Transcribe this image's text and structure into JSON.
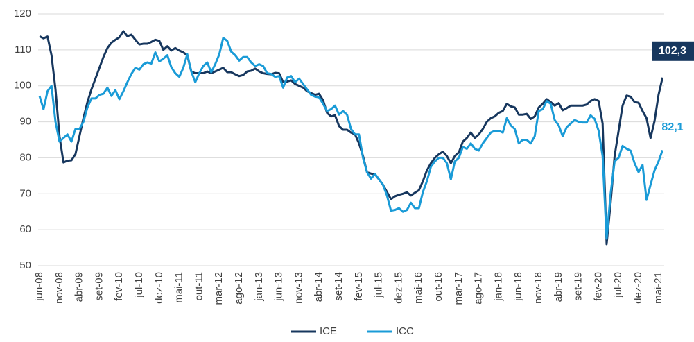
{
  "chart_data": {
    "type": "line",
    "categories": [
      "jun-08",
      null,
      null,
      null,
      null,
      "nov-08",
      null,
      null,
      null,
      null,
      "abr-09",
      null,
      null,
      null,
      null,
      "set-09",
      null,
      null,
      null,
      null,
      "fev-10",
      null,
      null,
      null,
      null,
      "jul-10",
      null,
      null,
      null,
      null,
      "dez-10",
      null,
      null,
      null,
      null,
      "mai-11",
      null,
      null,
      null,
      null,
      "out-11",
      null,
      null,
      null,
      null,
      "mar-12",
      null,
      null,
      null,
      null,
      "ago-12",
      null,
      null,
      null,
      null,
      "jan-13",
      null,
      null,
      null,
      null,
      "jun-13",
      null,
      null,
      null,
      null,
      "nov-13",
      null,
      null,
      null,
      null,
      "abr-14",
      null,
      null,
      null,
      null,
      "set-14",
      null,
      null,
      null,
      null,
      "fev-15",
      null,
      null,
      null,
      null,
      "jul-15",
      null,
      null,
      null,
      null,
      "dez-15",
      null,
      null,
      null,
      null,
      "mai-16",
      null,
      null,
      null,
      null,
      "out-16",
      null,
      null,
      null,
      null,
      "mar-17",
      null,
      null,
      null,
      null,
      "ago-17",
      null,
      null,
      null,
      null,
      "jan-18",
      null,
      null,
      null,
      null,
      "jun-18",
      null,
      null,
      null,
      null,
      "nov-18",
      null,
      null,
      null,
      null,
      "abr-19",
      null,
      null,
      null,
      null,
      "set-19",
      null,
      null,
      null,
      null,
      "fev-20",
      null,
      null,
      null,
      null,
      "jul-20",
      null,
      null,
      null,
      null,
      "dez-20",
      null,
      null,
      null,
      null,
      "mai-21",
      null
    ],
    "series": [
      {
        "name": "ICE",
        "color": "#17375e",
        "end_label": "102,3",
        "values": [
          113.8,
          113.2,
          113.7,
          108.5,
          99,
          86,
          78.7,
          79.2,
          79.3,
          81,
          86,
          91,
          95.5,
          99,
          102,
          105,
          108,
          110.5,
          112,
          112.8,
          113.5,
          115.2,
          113.8,
          114.2,
          112.8,
          111.5,
          111.7,
          111.7,
          112.2,
          112.8,
          112.5,
          110,
          111,
          109.8,
          110.5,
          109.8,
          109.3,
          108.5,
          104,
          103.5,
          103.5,
          103.5,
          104,
          103.5,
          104,
          104.5,
          105,
          103.8,
          103.8,
          103.2,
          102.7,
          103,
          104,
          104.2,
          104.8,
          104,
          103.5,
          103.3,
          103.2,
          103.6,
          103.5,
          101,
          101.2,
          101.5,
          100.5,
          100,
          99.5,
          98.5,
          98,
          97.5,
          97.8,
          96,
          92.5,
          91.5,
          91.8,
          88.8,
          87.8,
          87.8,
          87,
          86.5,
          84,
          80.5,
          76,
          75.6,
          75.4,
          74,
          72.5,
          70.5,
          68.5,
          69.3,
          69.7,
          70,
          70.4,
          69.5,
          70.3,
          71,
          73.5,
          76.5,
          78.5,
          80,
          81,
          81.7,
          80.5,
          78.5,
          80.5,
          81.5,
          84.5,
          85.5,
          87,
          85.5,
          86.5,
          88,
          90,
          91,
          91.5,
          92.5,
          93,
          95,
          94.3,
          94,
          92,
          92,
          92.2,
          90.8,
          91.5,
          94,
          95,
          96.3,
          95.5,
          94.5,
          95.2,
          93.2,
          93.8,
          94.5,
          94.5,
          94.5,
          94.5,
          94.8,
          95.8,
          96.3,
          95.8,
          89.5,
          56,
          67.5,
          80.5,
          87.5,
          94.5,
          97.3,
          97,
          95.5,
          95.3,
          93,
          91,
          85.5,
          90.2,
          97.5,
          102.3
        ]
      },
      {
        "name": "ICC",
        "color": "#1a9bd7",
        "end_label": "82,1",
        "values": [
          97.2,
          93.5,
          98.5,
          100,
          90,
          84.5,
          85.5,
          86.5,
          84.5,
          88,
          88,
          90,
          94,
          96.5,
          96.5,
          97.5,
          97.8,
          99.5,
          97.2,
          98.8,
          96.3,
          98.5,
          101,
          103.3,
          105,
          104.5,
          106,
          106.5,
          106.2,
          109.3,
          106.8,
          107.5,
          108.5,
          105.2,
          103.5,
          102.5,
          105,
          108.8,
          104,
          101,
          103.5,
          105.5,
          106.5,
          103.8,
          106,
          108.7,
          113.3,
          112.5,
          109.5,
          108.5,
          107,
          108,
          108,
          106.5,
          105.5,
          106,
          105.5,
          103.5,
          103.3,
          102.5,
          102.7,
          99.5,
          102.3,
          102.7,
          101,
          102,
          100.5,
          99,
          97.5,
          97,
          96.8,
          95,
          93,
          93.5,
          94.5,
          92,
          93,
          92,
          88,
          86.5,
          86.5,
          80,
          76,
          74.2,
          75.5,
          74,
          72.5,
          69.5,
          65.3,
          65.5,
          66,
          65,
          65.5,
          67.5,
          66,
          66,
          70.5,
          73.5,
          77.5,
          79,
          80,
          80,
          78.5,
          74,
          79,
          80,
          83,
          82.5,
          84,
          82.5,
          82,
          84,
          85.5,
          87,
          87.5,
          87.5,
          87,
          91,
          89,
          88,
          84,
          85,
          85,
          84,
          86,
          93,
          93.5,
          95.8,
          95,
          90.5,
          89,
          86,
          88.5,
          89.5,
          90.5,
          90,
          89.8,
          89.8,
          91.8,
          90.8,
          87.5,
          80.5,
          57.5,
          70,
          79,
          80,
          83.3,
          82.5,
          82,
          78.5,
          76,
          78,
          68.3,
          72.5,
          76.5,
          79,
          82.1
        ]
      }
    ],
    "ylim": [
      50,
      120
    ],
    "yticks": [
      50,
      60,
      70,
      80,
      90,
      100,
      110,
      120
    ],
    "grid": true,
    "legend": "bottom"
  }
}
